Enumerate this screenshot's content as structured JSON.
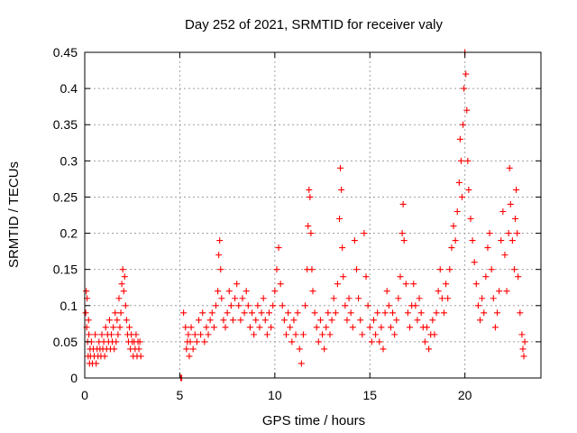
{
  "chart_data": {
    "type": "scatter",
    "title": "Day 252 of 2021, SRMTID for receiver valy",
    "xlabel": "GPS time / hours",
    "ylabel": "SRMTID / TECUs",
    "xlim": [
      0,
      24
    ],
    "ylim": [
      0,
      0.45
    ],
    "xticks": [
      0,
      5,
      10,
      15,
      20
    ],
    "xtick_labels": [
      "0",
      "5",
      "10",
      "15",
      "20"
    ],
    "yticks": [
      0,
      0.05,
      0.1,
      0.15,
      0.2,
      0.25,
      0.3,
      0.35,
      0.4,
      0.45
    ],
    "ytick_labels": [
      "0",
      "0.05",
      "0.1",
      "0.15",
      "0.2",
      "0.25",
      "0.3",
      "0.35",
      "0.4",
      "0.45"
    ],
    "grid": true,
    "marker": "+",
    "color": "#ff0000",
    "series": [
      {
        "name": "SRMTID",
        "points": [
          [
            0.05,
            0.09
          ],
          [
            0.08,
            0.12
          ],
          [
            0.1,
            0.07
          ],
          [
            0.12,
            0.11
          ],
          [
            0.15,
            0.05
          ],
          [
            0.18,
            0.03
          ],
          [
            0.2,
            0.08
          ],
          [
            0.22,
            0.06
          ],
          [
            0.25,
            0.02
          ],
          [
            0.28,
            0.04
          ],
          [
            0.3,
            0.03
          ],
          [
            0.35,
            0.05
          ],
          [
            0.4,
            0.02
          ],
          [
            0.45,
            0.04
          ],
          [
            0.5,
            0.03
          ],
          [
            0.55,
            0.06
          ],
          [
            0.6,
            0.02
          ],
          [
            0.65,
            0.04
          ],
          [
            0.7,
            0.03
          ],
          [
            0.75,
            0.05
          ],
          [
            0.8,
            0.04
          ],
          [
            0.85,
            0.03
          ],
          [
            0.9,
            0.06
          ],
          [
            0.95,
            0.04
          ],
          [
            1.0,
            0.05
          ],
          [
            1.05,
            0.03
          ],
          [
            1.1,
            0.07
          ],
          [
            1.15,
            0.04
          ],
          [
            1.2,
            0.06
          ],
          [
            1.25,
            0.05
          ],
          [
            1.3,
            0.08
          ],
          [
            1.35,
            0.04
          ],
          [
            1.4,
            0.06
          ],
          [
            1.45,
            0.05
          ],
          [
            1.5,
            0.07
          ],
          [
            1.55,
            0.04
          ],
          [
            1.6,
            0.09
          ],
          [
            1.65,
            0.05
          ],
          [
            1.7,
            0.08
          ],
          [
            1.75,
            0.06
          ],
          [
            1.8,
            0.11
          ],
          [
            1.85,
            0.07
          ],
          [
            1.9,
            0.09
          ],
          [
            1.95,
            0.13
          ],
          [
            2.0,
            0.15
          ],
          [
            2.05,
            0.12
          ],
          [
            2.1,
            0.14
          ],
          [
            2.15,
            0.1
          ],
          [
            2.2,
            0.08
          ],
          [
            2.25,
            0.06
          ],
          [
            2.3,
            0.05
          ],
          [
            2.35,
            0.07
          ],
          [
            2.4,
            0.04
          ],
          [
            2.45,
            0.06
          ],
          [
            2.5,
            0.05
          ],
          [
            2.55,
            0.03
          ],
          [
            2.6,
            0.05
          ],
          [
            2.65,
            0.04
          ],
          [
            2.7,
            0.06
          ],
          [
            2.75,
            0.03
          ],
          [
            2.8,
            0.05
          ],
          [
            2.85,
            0.04
          ],
          [
            2.9,
            0.05
          ],
          [
            2.95,
            0.03
          ],
          [
            5.05,
            0.0
          ],
          [
            5.1,
            0.0
          ],
          [
            5.2,
            0.09
          ],
          [
            5.3,
            0.07
          ],
          [
            5.35,
            0.04
          ],
          [
            5.4,
            0.05
          ],
          [
            5.45,
            0.06
          ],
          [
            5.5,
            0.03
          ],
          [
            5.55,
            0.05
          ],
          [
            5.6,
            0.07
          ],
          [
            5.7,
            0.04
          ],
          [
            5.8,
            0.06
          ],
          [
            5.9,
            0.05
          ],
          [
            6.0,
            0.08
          ],
          [
            6.1,
            0.06
          ],
          [
            6.2,
            0.09
          ],
          [
            6.3,
            0.05
          ],
          [
            6.4,
            0.07
          ],
          [
            6.5,
            0.06
          ],
          [
            6.6,
            0.08
          ],
          [
            6.7,
            0.09
          ],
          [
            6.8,
            0.07
          ],
          [
            6.9,
            0.1
          ],
          [
            7.0,
            0.12
          ],
          [
            7.05,
            0.17
          ],
          [
            7.1,
            0.19
          ],
          [
            7.15,
            0.15
          ],
          [
            7.2,
            0.11
          ],
          [
            7.3,
            0.08
          ],
          [
            7.4,
            0.07
          ],
          [
            7.5,
            0.09
          ],
          [
            7.6,
            0.12
          ],
          [
            7.7,
            0.1
          ],
          [
            7.8,
            0.08
          ],
          [
            7.9,
            0.11
          ],
          [
            8.0,
            0.13
          ],
          [
            8.1,
            0.1
          ],
          [
            8.2,
            0.08
          ],
          [
            8.3,
            0.11
          ],
          [
            8.4,
            0.09
          ],
          [
            8.5,
            0.12
          ],
          [
            8.6,
            0.1
          ],
          [
            8.7,
            0.07
          ],
          [
            8.8,
            0.09
          ],
          [
            8.9,
            0.06
          ],
          [
            9.0,
            0.08
          ],
          [
            9.1,
            0.1
          ],
          [
            9.2,
            0.07
          ],
          [
            9.3,
            0.09
          ],
          [
            9.4,
            0.11
          ],
          [
            9.5,
            0.08
          ],
          [
            9.6,
            0.06
          ],
          [
            9.7,
            0.09
          ],
          [
            9.8,
            0.07
          ],
          [
            9.9,
            0.1
          ],
          [
            10.0,
            0.12
          ],
          [
            10.1,
            0.15
          ],
          [
            10.2,
            0.18
          ],
          [
            10.3,
            0.13
          ],
          [
            10.4,
            0.1
          ],
          [
            10.5,
            0.08
          ],
          [
            10.6,
            0.06
          ],
          [
            10.7,
            0.09
          ],
          [
            10.8,
            0.07
          ],
          [
            10.9,
            0.05
          ],
          [
            11.0,
            0.08
          ],
          [
            11.1,
            0.06
          ],
          [
            11.2,
            0.09
          ],
          [
            11.3,
            0.04
          ],
          [
            11.4,
            0.02
          ],
          [
            11.5,
            0.06
          ],
          [
            11.6,
            0.1
          ],
          [
            11.7,
            0.15
          ],
          [
            11.75,
            0.21
          ],
          [
            11.8,
            0.26
          ],
          [
            11.85,
            0.25
          ],
          [
            11.9,
            0.2
          ],
          [
            11.95,
            0.15
          ],
          [
            12.0,
            0.12
          ],
          [
            12.1,
            0.09
          ],
          [
            12.2,
            0.07
          ],
          [
            12.3,
            0.05
          ],
          [
            12.4,
            0.08
          ],
          [
            12.5,
            0.06
          ],
          [
            12.6,
            0.04
          ],
          [
            12.7,
            0.07
          ],
          [
            12.8,
            0.09
          ],
          [
            12.9,
            0.06
          ],
          [
            13.0,
            0.08
          ],
          [
            13.1,
            0.11
          ],
          [
            13.2,
            0.09
          ],
          [
            13.3,
            0.13
          ],
          [
            13.4,
            0.22
          ],
          [
            13.45,
            0.29
          ],
          [
            13.5,
            0.26
          ],
          [
            13.55,
            0.18
          ],
          [
            13.6,
            0.14
          ],
          [
            13.7,
            0.1
          ],
          [
            13.8,
            0.08
          ],
          [
            13.9,
            0.11
          ],
          [
            14.0,
            0.09
          ],
          [
            14.1,
            0.07
          ],
          [
            14.2,
            0.19
          ],
          [
            14.3,
            0.15
          ],
          [
            14.4,
            0.11
          ],
          [
            14.5,
            0.08
          ],
          [
            14.6,
            0.06
          ],
          [
            14.7,
            0.2
          ],
          [
            14.8,
            0.14
          ],
          [
            14.9,
            0.1
          ],
          [
            15.0,
            0.07
          ],
          [
            15.1,
            0.05
          ],
          [
            15.2,
            0.08
          ],
          [
            15.3,
            0.06
          ],
          [
            15.4,
            0.09
          ],
          [
            15.5,
            0.05
          ],
          [
            15.6,
            0.07
          ],
          [
            15.7,
            0.04
          ],
          [
            15.8,
            0.09
          ],
          [
            15.9,
            0.12
          ],
          [
            16.0,
            0.1
          ],
          [
            16.1,
            0.07
          ],
          [
            16.2,
            0.09
          ],
          [
            16.3,
            0.06
          ],
          [
            16.4,
            0.08
          ],
          [
            16.5,
            0.11
          ],
          [
            16.6,
            0.14
          ],
          [
            16.7,
            0.2
          ],
          [
            16.75,
            0.24
          ],
          [
            16.8,
            0.19
          ],
          [
            16.9,
            0.13
          ],
          [
            17.0,
            0.09
          ],
          [
            17.1,
            0.07
          ],
          [
            17.2,
            0.1
          ],
          [
            17.3,
            0.13
          ],
          [
            17.4,
            0.1
          ],
          [
            17.5,
            0.08
          ],
          [
            17.6,
            0.11
          ],
          [
            17.7,
            0.09
          ],
          [
            17.8,
            0.07
          ],
          [
            17.9,
            0.05
          ],
          [
            18.0,
            0.07
          ],
          [
            18.1,
            0.04
          ],
          [
            18.2,
            0.06
          ],
          [
            18.3,
            0.08
          ],
          [
            18.4,
            0.06
          ],
          [
            18.5,
            0.09
          ],
          [
            18.6,
            0.12
          ],
          [
            18.7,
            0.15
          ],
          [
            18.8,
            0.11
          ],
          [
            18.9,
            0.09
          ],
          [
            19.0,
            0.13
          ],
          [
            19.1,
            0.11
          ],
          [
            19.2,
            0.15
          ],
          [
            19.3,
            0.18
          ],
          [
            19.4,
            0.21
          ],
          [
            19.5,
            0.19
          ],
          [
            19.6,
            0.23
          ],
          [
            19.7,
            0.27
          ],
          [
            19.75,
            0.33
          ],
          [
            19.8,
            0.3
          ],
          [
            19.85,
            0.25
          ],
          [
            19.9,
            0.35
          ],
          [
            19.95,
            0.4
          ],
          [
            20.0,
            0.45
          ],
          [
            20.05,
            0.42
          ],
          [
            20.1,
            0.37
          ],
          [
            20.15,
            0.3
          ],
          [
            20.2,
            0.26
          ],
          [
            20.3,
            0.22
          ],
          [
            20.4,
            0.19
          ],
          [
            20.5,
            0.16
          ],
          [
            20.6,
            0.13
          ],
          [
            20.7,
            0.1
          ],
          [
            20.8,
            0.08
          ],
          [
            20.9,
            0.11
          ],
          [
            21.0,
            0.09
          ],
          [
            21.1,
            0.14
          ],
          [
            21.2,
            0.18
          ],
          [
            21.3,
            0.2
          ],
          [
            21.4,
            0.15
          ],
          [
            21.5,
            0.11
          ],
          [
            21.6,
            0.07
          ],
          [
            21.7,
            0.09
          ],
          [
            21.8,
            0.12
          ],
          [
            21.9,
            0.19
          ],
          [
            22.0,
            0.23
          ],
          [
            22.1,
            0.17
          ],
          [
            22.2,
            0.12
          ],
          [
            22.3,
            0.2
          ],
          [
            22.35,
            0.29
          ],
          [
            22.4,
            0.24
          ],
          [
            22.5,
            0.19
          ],
          [
            22.6,
            0.15
          ],
          [
            22.65,
            0.22
          ],
          [
            22.7,
            0.26
          ],
          [
            22.75,
            0.2
          ],
          [
            22.8,
            0.14
          ],
          [
            22.9,
            0.09
          ],
          [
            23.0,
            0.06
          ],
          [
            23.05,
            0.04
          ],
          [
            23.1,
            0.03
          ],
          [
            23.15,
            0.05
          ]
        ]
      }
    ]
  }
}
